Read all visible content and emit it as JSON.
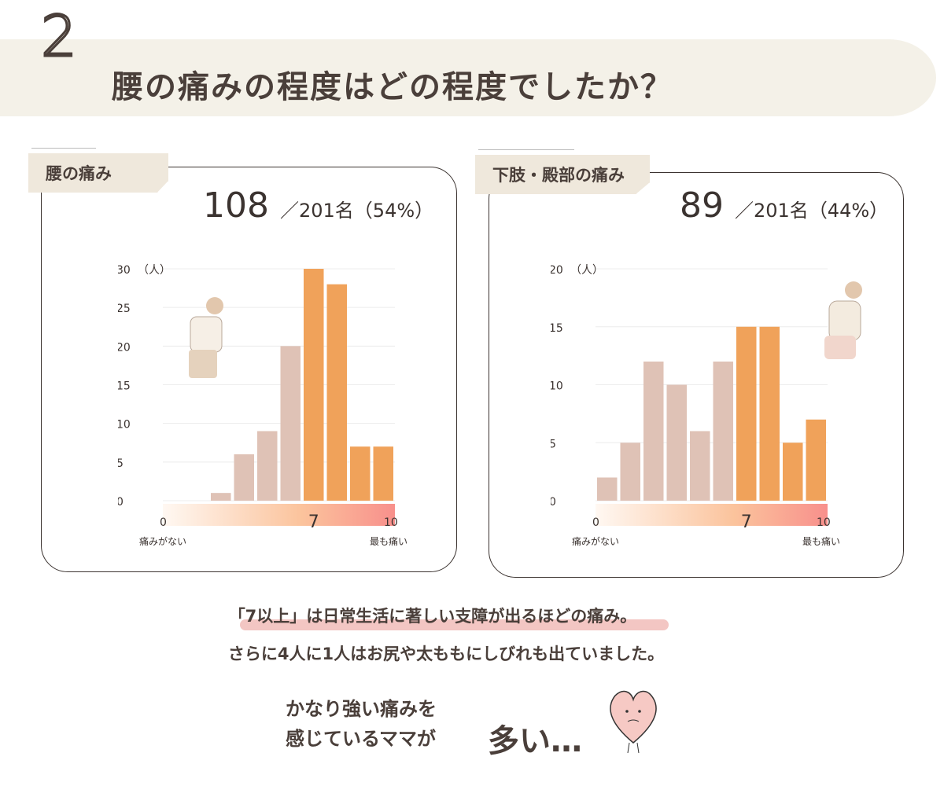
{
  "header": {
    "number": "2",
    "title": "腰の痛みの程度はどの程度でしたか？"
  },
  "panels": [
    {
      "tag": "腰の痛み",
      "count": "108",
      "total": "／201名",
      "percent": "（54%）"
    },
    {
      "tag": "下肢・殿部の痛み",
      "count": "89",
      "total": "／201名",
      "percent": "（44%）"
    }
  ],
  "colors": {
    "below7": "#dfc2b6",
    "from7": "#f0a25a",
    "scale_start": "#fff8f2",
    "scale_end": "#f8908c"
  },
  "chart_data": [
    {
      "type": "bar",
      "categories": [
        "1",
        "2",
        "3",
        "4",
        "5",
        "6",
        "7",
        "8",
        "9",
        "10"
      ],
      "values": [
        0,
        0,
        1,
        6,
        9,
        20,
        30,
        28,
        7,
        7
      ],
      "ylim": [
        0,
        30
      ],
      "yticks": [
        0,
        5,
        10,
        15,
        20,
        25,
        30
      ],
      "ylabel": "（人）",
      "xticks": [
        "0",
        "7",
        "10"
      ],
      "xlabel_left": "痛みがない",
      "xlabel_right": "最も痛い",
      "highlight_from": 7,
      "grid": true
    },
    {
      "type": "bar",
      "categories": [
        "1",
        "2",
        "3",
        "4",
        "5",
        "6",
        "7",
        "8",
        "9",
        "10"
      ],
      "values": [
        2,
        5,
        12,
        10,
        6,
        12,
        15,
        15,
        5,
        7
      ],
      "ylim": [
        0,
        20
      ],
      "yticks": [
        0,
        5,
        10,
        15,
        20
      ],
      "ylabel": "（人）",
      "xticks": [
        "0",
        "7",
        "10"
      ],
      "xlabel_left": "痛みがない",
      "xlabel_right": "最も痛い",
      "highlight_from": 7,
      "grid": true
    }
  ],
  "notes": {
    "line1": "「7以上」は日常生活に著しい支障が出るほどの痛み。",
    "line2": "さらに4人に1人はお尻や太ももにしびれも出ていました。"
  },
  "outro": {
    "line1": "かなり強い痛みを",
    "line2": "感じているママが",
    "big": "多い…"
  }
}
